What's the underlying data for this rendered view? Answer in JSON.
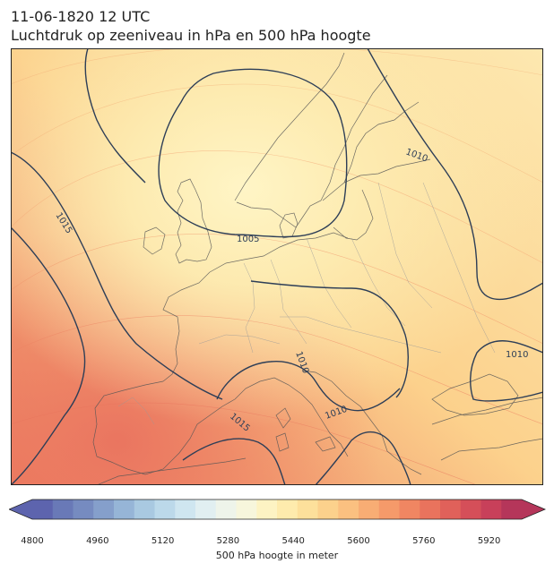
{
  "header": {
    "datetime": "11-06-1820 12 UTC",
    "title": "Luchtdruk op zeeniveau in hPa en 500 hPa hoogte"
  },
  "map": {
    "region": "Europe",
    "isobar_labels": [
      "1005",
      "1010",
      "1010",
      "1010",
      "1010",
      "1015",
      "1015"
    ],
    "isobar_color": "#2d3e57",
    "coastline_color": "#555555",
    "border_color": "#999999"
  },
  "colorbar": {
    "label": "500 hPa hoogte in meter",
    "ticks": [
      "4800",
      "4960",
      "5120",
      "5280",
      "5440",
      "5600",
      "5760",
      "5920"
    ],
    "min": 4800,
    "max": 6000,
    "step": 40,
    "colors": [
      "#5d64ae",
      "#6979b7",
      "#768bc0",
      "#859fcb",
      "#96b5d7",
      "#a9c9e1",
      "#bcd9ea",
      "#cfe6f0",
      "#e1eff1",
      "#eef4ea",
      "#f7f6dc",
      "#fdf3c3",
      "#feebad",
      "#fde09b",
      "#fcd18c",
      "#fbc080",
      "#f8ad74",
      "#f59a6a",
      "#f08662",
      "#e9735d",
      "#e0615a",
      "#d54f59",
      "#c8405a",
      "#b5365a"
    ],
    "extend_low_color": "#5d64ae",
    "extend_high_color": "#b5365a"
  }
}
